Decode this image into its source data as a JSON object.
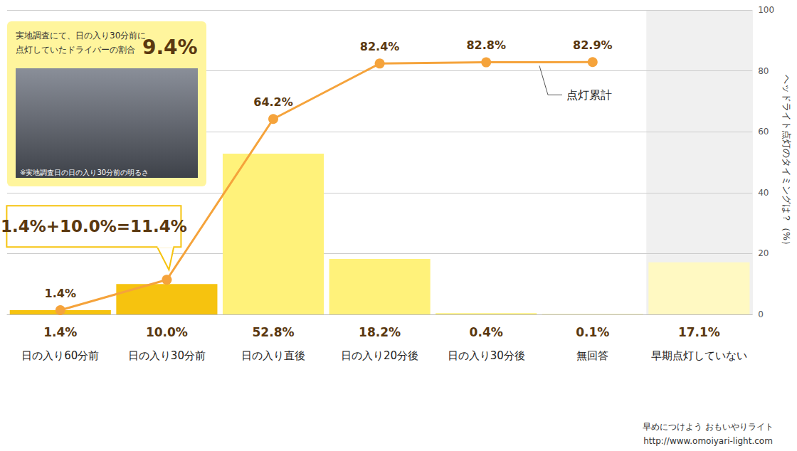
{
  "chart_data": {
    "type": "bar",
    "categories": [
      "日の入り60分前",
      "日の入り30分前",
      "日の入り直後",
      "日の入り20分後",
      "日の入り30分後",
      "無回答",
      "早期点灯していない"
    ],
    "y_axis_title": "ヘッドライト点灯のタイミングは？（%）",
    "ylim": [
      0,
      100
    ],
    "yticks": [
      0,
      20,
      40,
      60,
      80,
      100
    ],
    "grid": true,
    "data_labels": true,
    "series": [
      {
        "type": "bar",
        "colors": [
          "#f6c30f",
          "#f6c30f",
          "#fff27a",
          "#fff27a",
          "#fff27a",
          "#fff27a",
          "#fff9c2"
        ],
        "values": [
          1.4,
          10.0,
          52.8,
          18.2,
          0.4,
          0.1,
          17.1
        ],
        "value_labels": [
          "1.4%",
          "10.0%",
          "52.8%",
          "18.2%",
          "0.4%",
          "0.1%",
          "17.1%"
        ]
      },
      {
        "name": "点灯累計",
        "type": "line",
        "color": "#f5a33b",
        "marker": "circle",
        "values": [
          1.4,
          11.4,
          64.2,
          82.4,
          82.8,
          82.9,
          null
        ],
        "value_labels": [
          "1.4%",
          null,
          "64.2%",
          "82.4%",
          "82.8%",
          "82.9%",
          null
        ]
      }
    ],
    "annotations": {
      "survey_lines": [
        "実地調査にて、日の入り30分前に",
        "点灯していたドライバーの割合"
      ],
      "survey_value_label": "9.4%",
      "photo_note": "※実地調査日の日の入り30分前の明るさ",
      "sum": "1.4%+10.0%=11.4%",
      "footer": [
        "早めにつけよう おもいやりライト",
        "http://www.omoiyari-light.com"
      ]
    }
  }
}
